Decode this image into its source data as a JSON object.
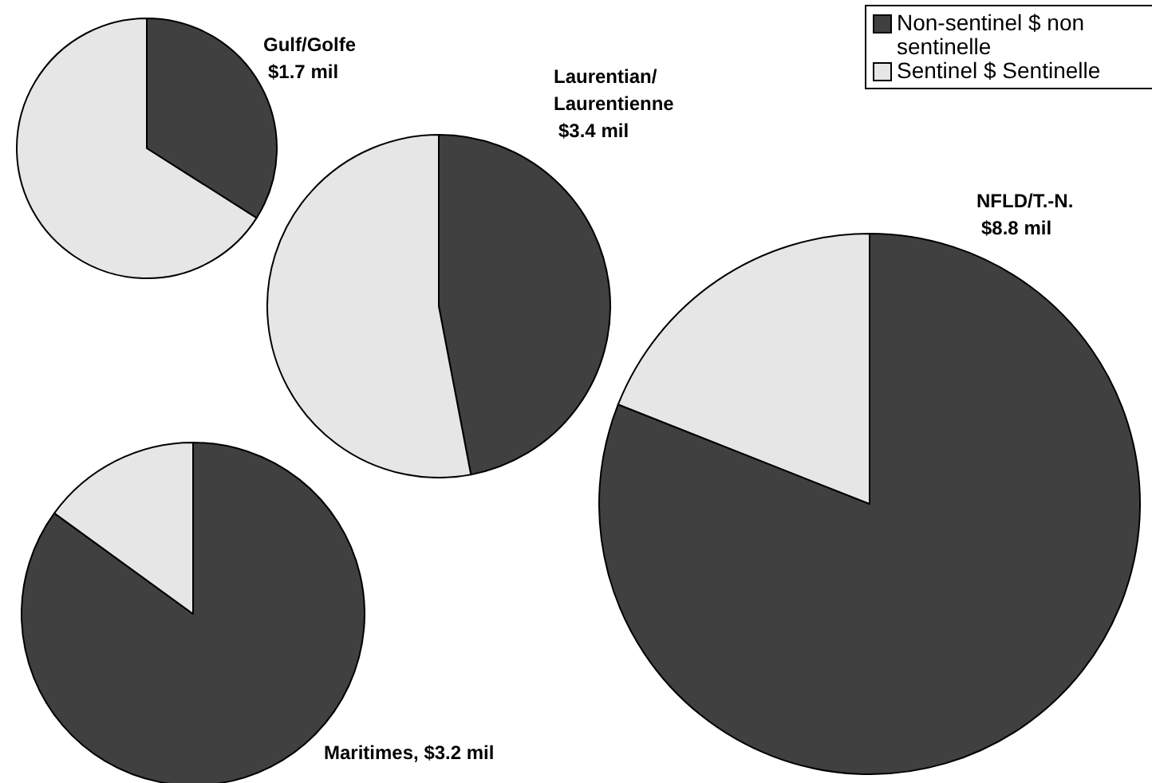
{
  "chart_data": [
    {
      "type": "pie",
      "title": "Gulf/Golfe",
      "subtitle": "$1.7 mil",
      "categories": [
        "Non-sentinel $ non sentinelle",
        "Sentinel $ Sentinelle"
      ],
      "values": [
        34,
        66
      ],
      "colors": [
        "#404040",
        "#e6e6e6"
      ],
      "legend": "top right"
    },
    {
      "type": "pie",
      "title": "Laurentian/Laurentienne",
      "subtitle": "$3.4 mil",
      "categories": [
        null,
        null
      ],
      "values": [
        47,
        53
      ],
      "colors": [
        "#404040",
        "#e6e6e6"
      ]
    },
    {
      "type": "pie",
      "title": "NFLD/T.-N.",
      "subtitle": "$8.8 mil",
      "categories": [
        null,
        null
      ],
      "values": [
        81,
        19
      ],
      "colors": [
        "#404040",
        "#e6e6e6"
      ]
    },
    {
      "type": "pie",
      "title": "Maritimes, $3.2 mil",
      "categories": [
        null,
        null
      ],
      "values": [
        85,
        15
      ],
      "colors": [
        "#404040",
        "#e6e6e6"
      ]
    }
  ]
}
